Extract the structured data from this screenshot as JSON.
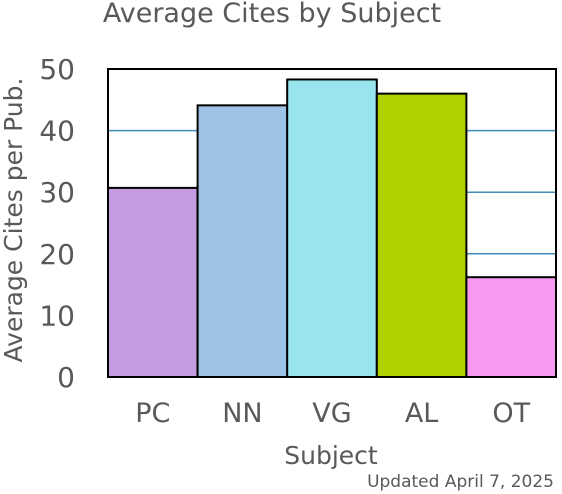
{
  "chart_data": {
    "type": "bar",
    "title": "Average Cites by Subject",
    "xlabel": "Subject",
    "ylabel": "Average Cites per Pub.",
    "categories": [
      "PC",
      "NN",
      "VG",
      "AL",
      "OT"
    ],
    "values": [
      30.7,
      44.1,
      48.3,
      46.0,
      16.2
    ],
    "colors": [
      "#c39be0",
      "#9fc3e7",
      "#99e5ee",
      "#b0d000",
      "#f799f0"
    ],
    "ylim": [
      0,
      50
    ],
    "yticks": [
      "0",
      "10",
      "20",
      "30",
      "40",
      "50"
    ],
    "grid": true,
    "grid_color": "#3d8db5",
    "bar_edge_color": "#000000"
  },
  "footer": {
    "updated": "Updated April 7, 2025"
  }
}
